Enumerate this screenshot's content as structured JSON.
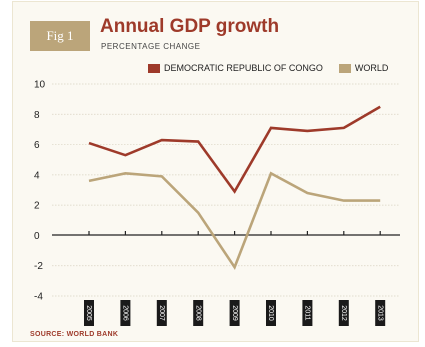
{
  "figure": {
    "badge": "Fig 1",
    "title": "Annual GDP growth",
    "subtitle": "PERCENTAGE CHANGE",
    "source": "SOURCE: WORLD BANK"
  },
  "chart_data": {
    "type": "line",
    "categories": [
      "2005",
      "2006",
      "2007",
      "2008",
      "2009",
      "2010",
      "2011",
      "2012",
      "2013"
    ],
    "ylim": [
      -4,
      10
    ],
    "yticks": [
      "10",
      "8",
      "6",
      "4",
      "2",
      "0",
      "-2",
      "-4"
    ],
    "ytick_values": [
      10,
      8,
      6,
      4,
      2,
      0,
      -2,
      -4
    ],
    "series": [
      {
        "name": "DEMOCRATIC REPUBLIC OF CONGO",
        "color": "#9e3a2a",
        "values": [
          6.1,
          5.3,
          6.3,
          6.2,
          2.9,
          7.1,
          6.9,
          7.1,
          8.5
        ]
      },
      {
        "name": "WORLD",
        "color": "#bba57a",
        "values": [
          3.6,
          4.1,
          3.9,
          1.5,
          -2.1,
          4.1,
          2.8,
          2.3,
          2.3
        ]
      }
    ],
    "grid": true,
    "legend_position": "top-right"
  }
}
